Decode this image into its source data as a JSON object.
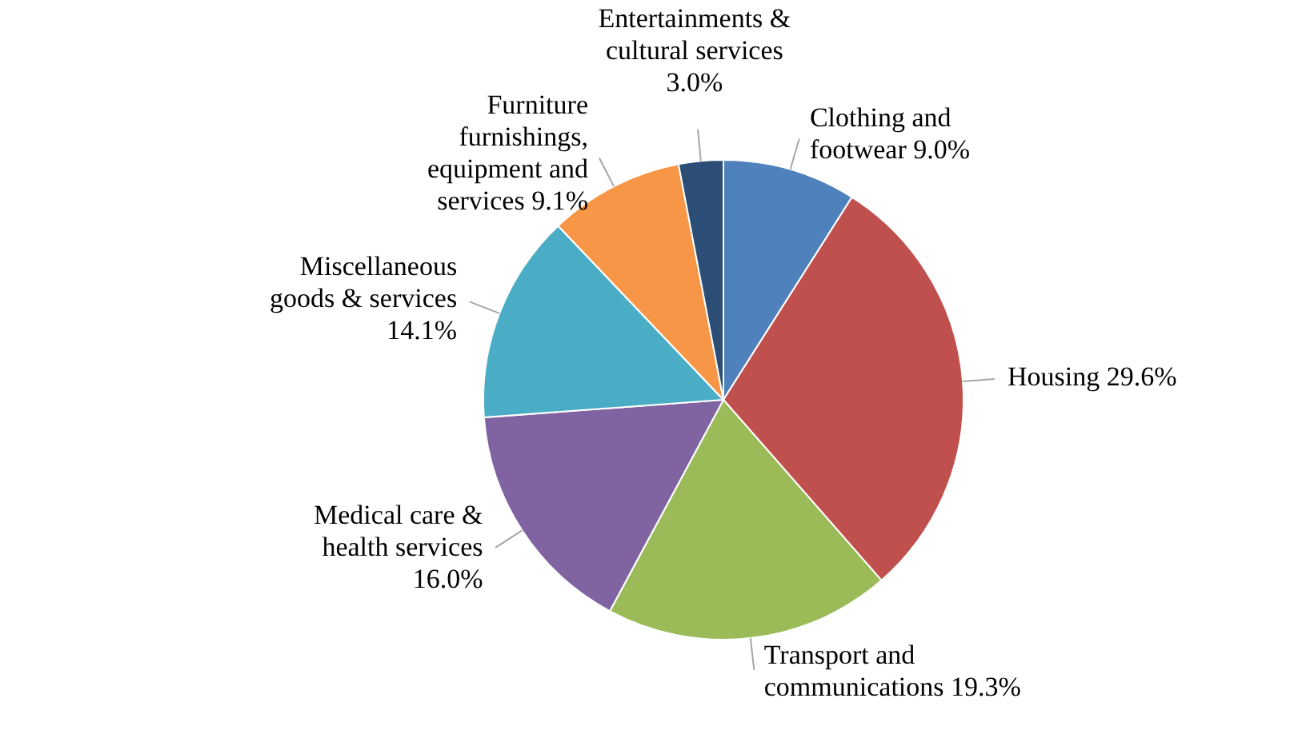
{
  "chart_data": {
    "type": "pie",
    "categories": [
      "Clothing and footwear",
      "Housing",
      "Transport and communications",
      "Medical care & health services",
      "Miscellaneous goods & services",
      "Furniture furnishings, equipment and services",
      "Entertainments & cultural services"
    ],
    "values": [
      9.0,
      29.6,
      19.3,
      16.0,
      14.1,
      9.1,
      3.0
    ],
    "value_labels": [
      "9.0%",
      "29.6%",
      "19.3%",
      "16.0%",
      "14.1%",
      "9.1%",
      "3.0%"
    ],
    "colors": [
      "#4f81bd",
      "#c0504d",
      "#9bbb59",
      "#8064a2",
      "#4bacc6",
      "#f79646",
      "#2c4d75"
    ],
    "legend": false
  }
}
